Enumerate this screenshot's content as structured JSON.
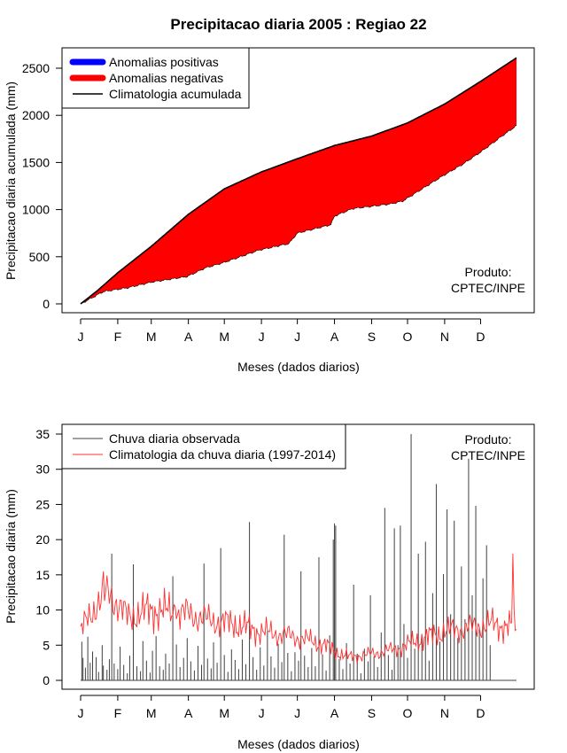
{
  "title": "Precipitacao diaria 2005 : Regiao 22",
  "colors": {
    "positive": "#0000ff",
    "negative": "#ff0000",
    "climatology": "#000000",
    "observed": "#404040",
    "daily_clim": "#ff3030"
  },
  "chart_data": [
    {
      "type": "area",
      "ylabel": "Precipitacao diaria acumulada (mm)",
      "xlabel": "Meses (dados diarios)",
      "ylim": [
        0,
        2600
      ],
      "yticks": [
        0,
        500,
        1000,
        1500,
        2000,
        2500
      ],
      "month_labels": [
        "J",
        "F",
        "M",
        "A",
        "M",
        "J",
        "J",
        "A",
        "S",
        "O",
        "N",
        "D"
      ],
      "legend": [
        "Anomalias positivas",
        "Anomalias negativas",
        "Climatologia acumulada"
      ],
      "legend_position": "top-left",
      "credit": [
        "Produto:",
        "CPTEC/INPE"
      ],
      "credit_position": "bottom-right",
      "climatology_anchors": [
        [
          1,
          0
        ],
        [
          15,
          140
        ],
        [
          32,
          330
        ],
        [
          60,
          610
        ],
        [
          91,
          950
        ],
        [
          121,
          1220
        ],
        [
          152,
          1400
        ],
        [
          182,
          1540
        ],
        [
          213,
          1680
        ],
        [
          244,
          1780
        ],
        [
          274,
          1920
        ],
        [
          305,
          2120
        ],
        [
          335,
          2360
        ],
        [
          365,
          2610
        ]
      ],
      "observed_anchors": [
        [
          1,
          0
        ],
        [
          10,
          60
        ],
        [
          20,
          130
        ],
        [
          40,
          170
        ],
        [
          60,
          230
        ],
        [
          90,
          290
        ],
        [
          105,
          380
        ],
        [
          121,
          440
        ],
        [
          150,
          570
        ],
        [
          175,
          640
        ],
        [
          182,
          750
        ],
        [
          210,
          840
        ],
        [
          213,
          930
        ],
        [
          228,
          1010
        ],
        [
          260,
          1060
        ],
        [
          270,
          1090
        ],
        [
          290,
          1250
        ],
        [
          305,
          1370
        ],
        [
          320,
          1480
        ],
        [
          335,
          1610
        ],
        [
          355,
          1800
        ],
        [
          365,
          1890
        ]
      ]
    },
    {
      "type": "line",
      "ylabel": "Precipitacao diaria (mm)",
      "xlabel": "Meses (dados diarios)",
      "ylim": [
        0,
        35
      ],
      "yticks": [
        0,
        5,
        10,
        15,
        20,
        25,
        30,
        35
      ],
      "month_labels": [
        "J",
        "F",
        "M",
        "A",
        "M",
        "J",
        "J",
        "A",
        "S",
        "O",
        "N",
        "D"
      ],
      "series": [
        {
          "name": "Chuva diaria observada",
          "values": [
            0,
            5.5,
            3.2,
            0,
            1.8,
            0,
            6.2,
            0,
            2.5,
            0,
            4.1,
            0,
            0,
            3.3,
            0,
            1.2,
            0,
            0,
            5.0,
            2.1,
            0,
            0,
            1.5,
            0,
            3.0,
            0,
            18.0,
            0,
            2.4,
            0,
            0,
            1.6,
            0,
            4.8,
            0,
            0,
            2.2,
            0,
            0,
            1.0,
            0,
            3.5,
            0,
            0,
            16.5,
            0,
            0,
            2.0,
            0,
            0,
            1.3,
            0,
            5.6,
            0,
            0,
            2.8,
            0,
            0,
            1.1,
            0,
            4.2,
            0,
            0,
            6.3,
            0,
            0,
            2.0,
            0,
            0,
            1.5,
            0,
            3.8,
            0,
            0,
            2.4,
            0,
            0,
            14.8,
            0,
            0,
            5.1,
            0,
            0,
            1.9,
            0,
            0,
            3.2,
            0,
            0,
            6.0,
            0,
            0,
            2.7,
            0,
            0,
            1.4,
            0,
            0,
            4.9,
            0,
            0,
            2.2,
            0,
            16.6,
            0,
            0,
            3.1,
            0,
            0,
            1.7,
            0,
            5.4,
            0,
            0,
            2.5,
            0,
            0,
            18.8,
            0,
            0,
            3.6,
            0,
            0,
            1.2,
            0,
            0,
            4.4,
            0,
            0,
            2.9,
            0,
            0,
            1.6,
            0,
            0,
            5.8,
            0,
            0,
            2.3,
            0,
            0,
            22.5,
            0,
            0,
            3.3,
            0,
            0,
            1.5,
            0,
            0,
            4.7,
            0,
            0,
            2.1,
            0,
            0,
            7.0,
            0,
            0,
            3.4,
            0,
            0,
            1.8,
            0,
            0,
            5.2,
            0,
            0,
            2.6,
            0,
            20.7,
            0,
            0,
            3.9,
            0,
            0,
            1.3,
            0,
            0,
            4.0,
            0,
            0,
            2.8,
            0,
            15.5,
            0,
            0,
            3.5,
            0,
            0,
            1.9,
            0,
            0,
            4.6,
            0,
            0,
            2.0,
            0,
            0,
            17.5,
            0,
            0,
            3.7,
            0,
            0,
            1.4,
            0,
            0,
            6.4,
            0,
            0,
            20.0,
            22.3,
            22.0,
            0,
            0,
            3.0,
            0,
            0,
            1.6,
            0,
            0,
            5.3,
            0,
            0,
            2.4,
            0,
            0,
            13.6,
            0,
            0,
            3.8,
            0,
            0,
            1.0,
            0,
            0,
            4.5,
            0,
            0,
            2.7,
            0,
            12.1,
            0,
            0,
            3.4,
            0,
            0,
            1.9,
            0,
            0,
            6.8,
            0,
            0,
            24.5,
            0,
            0,
            3.6,
            0,
            0,
            1.5,
            0,
            21.6,
            0,
            0,
            5.0,
            0,
            22.0,
            0,
            0,
            8.0,
            0,
            0,
            3.2,
            0,
            0,
            35.0,
            0,
            0,
            4.5,
            0,
            0,
            18.0,
            0,
            0,
            6.3,
            0,
            0,
            19.7,
            0,
            0,
            2.8,
            0,
            0,
            12.4,
            0,
            0,
            27.9,
            0,
            0,
            5.5,
            0,
            0,
            15.1,
            0,
            0,
            24.3,
            0,
            0,
            9.4,
            0,
            0,
            22.7,
            0,
            0,
            6.0,
            0,
            0,
            16.2,
            0,
            0,
            8.7,
            0,
            0,
            31.5,
            0,
            0,
            12.1,
            0,
            0,
            24.8,
            0,
            0,
            7.3,
            0,
            0,
            14.5,
            0,
            0,
            19.2,
            0,
            0,
            5.0
          ]
        },
        {
          "name": "Climatologia da chuva diaria (1997-2014)",
          "base_anchors": [
            [
              1,
              7.0
            ],
            [
              15,
              11.0
            ],
            [
              25,
              12.5
            ],
            [
              40,
              9.0
            ],
            [
              60,
              10.0
            ],
            [
              90,
              9.5
            ],
            [
              110,
              8.5
            ],
            [
              130,
              8.0
            ],
            [
              150,
              7.0
            ],
            [
              170,
              6.5
            ],
            [
              190,
              5.8
            ],
            [
              205,
              5.0
            ],
            [
              215,
              4.0
            ],
            [
              225,
              3.3
            ],
            [
              245,
              3.8
            ],
            [
              265,
              4.5
            ],
            [
              285,
              5.8
            ],
            [
              305,
              7.0
            ],
            [
              325,
              7.5
            ],
            [
              345,
              8.0
            ],
            [
              365,
              7.5
            ]
          ]
        }
      ],
      "legend_position": "top-left",
      "credit": [
        "Produto:",
        "CPTEC/INPE"
      ],
      "credit_position": "top-right"
    }
  ]
}
